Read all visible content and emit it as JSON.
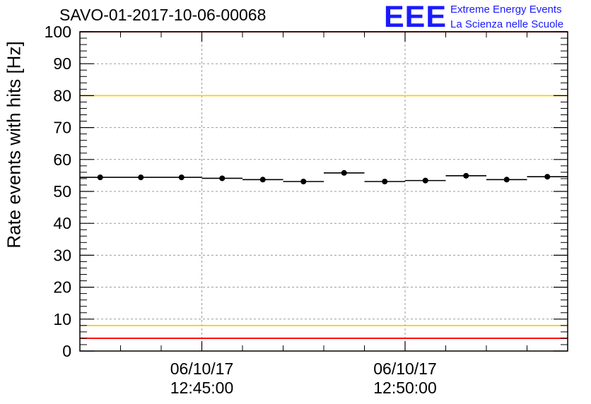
{
  "chart_data": {
    "type": "scatter",
    "title": "SAVO-01-2017-10-06-00068",
    "ylabel": "Rate events with hits [Hz]",
    "ylim": [
      0,
      100
    ],
    "yticks": [
      0,
      10,
      20,
      30,
      40,
      50,
      60,
      70,
      80,
      90,
      100
    ],
    "x_range_minutes": [
      0,
      12
    ],
    "x_tick_labels": [
      {
        "pos": 3,
        "date": "06/10/17",
        "time": "12:45:00"
      },
      {
        "pos": 8,
        "date": "06/10/17",
        "time": "12:50:00"
      }
    ],
    "points": [
      {
        "x": 0.5,
        "y": 54.4
      },
      {
        "x": 1.5,
        "y": 54.4
      },
      {
        "x": 2.5,
        "y": 54.4
      },
      {
        "x": 3.5,
        "y": 54.1
      },
      {
        "x": 4.5,
        "y": 53.7
      },
      {
        "x": 5.5,
        "y": 53.1
      },
      {
        "x": 6.5,
        "y": 55.8
      },
      {
        "x": 7.5,
        "y": 53.1
      },
      {
        "x": 8.5,
        "y": 53.4
      },
      {
        "x": 9.5,
        "y": 54.9
      },
      {
        "x": 10.5,
        "y": 53.7
      },
      {
        "x": 11.5,
        "y": 54.6
      }
    ],
    "reference_lines": [
      {
        "y": 100,
        "color": "#ff0000"
      },
      {
        "y": 80,
        "color": "#ffcc00"
      },
      {
        "y": 8,
        "color": "#ffcc00"
      },
      {
        "y": 4,
        "color": "#ff0000"
      }
    ],
    "grid": true
  },
  "logo": {
    "mark": "EEE",
    "line1": "Extreme Energy Events",
    "line2": "La Scienza nelle Scuole"
  }
}
